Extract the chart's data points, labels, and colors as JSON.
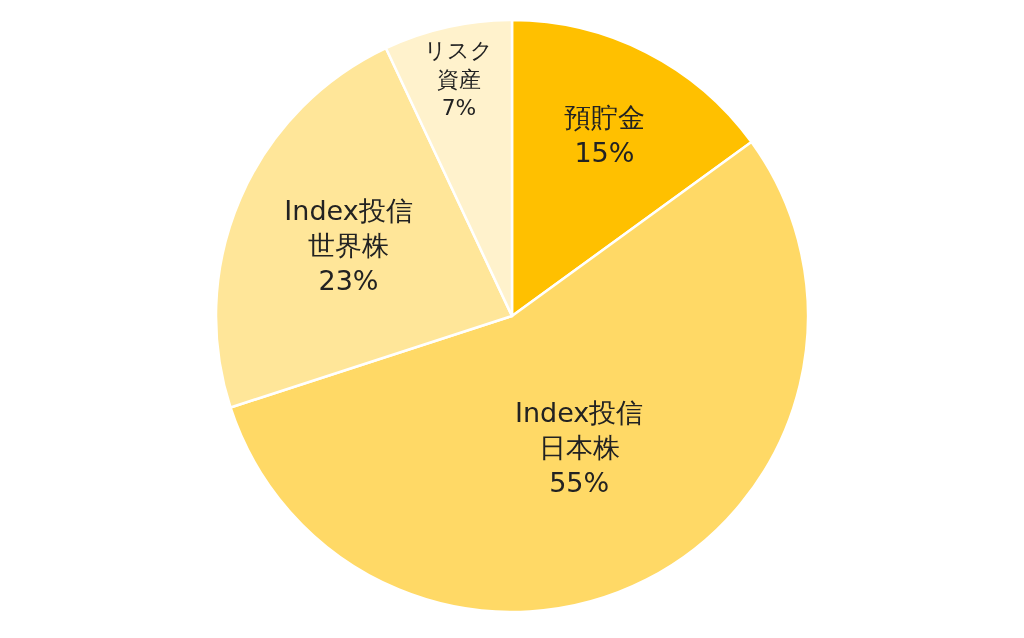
{
  "chart_data": {
    "type": "pie",
    "categories": [
      "預貯金",
      "Index投信日本株",
      "Index投信世界株",
      "リスク資産"
    ],
    "values": [
      15,
      55,
      23,
      7
    ],
    "colors": [
      "#ffc000",
      "#ffd966",
      "#ffe699",
      "#fff2cc"
    ],
    "value_labels": [
      "15%",
      "55%",
      "23%",
      "7%"
    ],
    "legend": false
  }
}
